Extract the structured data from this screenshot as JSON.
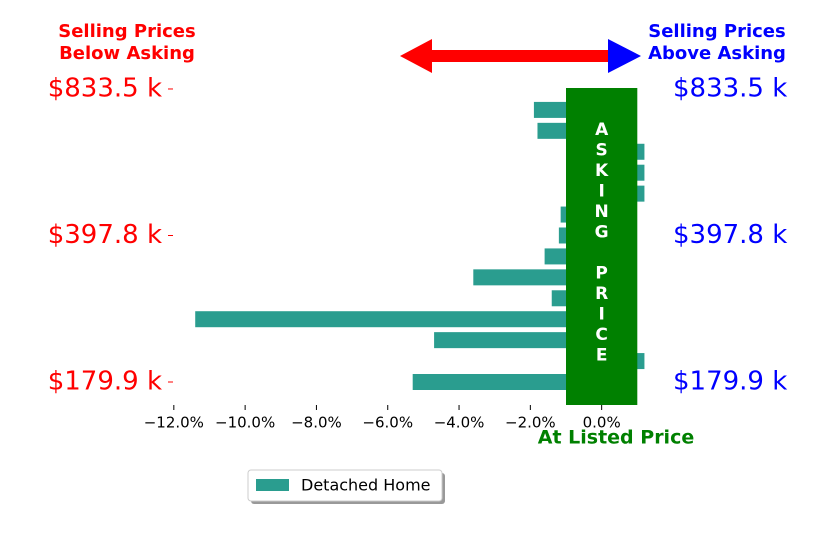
{
  "chart_data": {
    "type": "barh",
    "left_title": [
      "Selling Prices",
      "Below Asking"
    ],
    "right_title": [
      "Selling Prices",
      "Above Asking"
    ],
    "band_label": "ASKING PRICE",
    "xlabel": "At Listed Price",
    "asking_band": [
      -1,
      1
    ],
    "categories": [
      "$179.9 k",
      null,
      null,
      null,
      null,
      null,
      null,
      "$397.8 k",
      null,
      null,
      null,
      null,
      null,
      null,
      "$833.5 k"
    ],
    "series": [
      {
        "name": "Detached Home",
        "color": "#2a9d8f",
        "values": [
          -5.3,
          1.2,
          -4.7,
          -11.4,
          -1.4,
          -3.6,
          -1.6,
          -1.2,
          -1.15,
          1.2,
          1.2,
          1.2,
          -1.8,
          -1.9,
          0
        ]
      }
    ],
    "xlim": [
      -12.5,
      1.3
    ],
    "xticks": [
      {
        "value": -12,
        "label": "−12.0%"
      },
      {
        "value": -10,
        "label": "−10.0%"
      },
      {
        "value": -8,
        "label": "−8.0%"
      },
      {
        "value": -6,
        "label": "−6.0%"
      },
      {
        "value": -4,
        "label": "−4.0%"
      },
      {
        "value": -2,
        "label": "−2.0%"
      },
      {
        "value": 0,
        "label": "0.0%"
      }
    ],
    "legend": "lower center"
  }
}
